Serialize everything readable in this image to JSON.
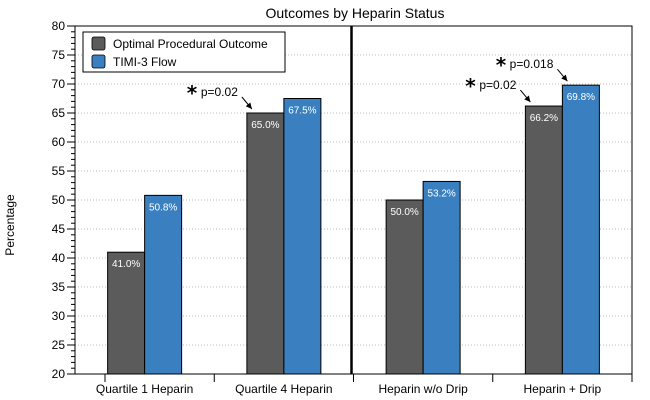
{
  "chart_data": {
    "type": "bar",
    "title": "Outcomes by Heparin Status",
    "ylabel": "Percentage",
    "xlabel": "",
    "ylim": [
      20,
      80
    ],
    "yticks": [
      20,
      25,
      30,
      35,
      40,
      45,
      50,
      55,
      60,
      65,
      70,
      75,
      80
    ],
    "grid": "dotted horizontal",
    "legend_placement": "top-left",
    "categories": [
      "Quartile 1 Heparin",
      "Quartile 4 Heparin",
      "Heparin w/o Drip",
      "Heparin + Drip"
    ],
    "series": [
      {
        "name": "Optimal Procedural Outcome",
        "color": "#5b5b5b",
        "values": [
          41.0,
          65.0,
          50.0,
          66.2
        ],
        "labels": [
          "41.0%",
          "65.0%",
          "50.0%",
          "66.2%"
        ]
      },
      {
        "name": "TIMI-3 Flow",
        "color": "#3a80c0",
        "values": [
          50.8,
          67.5,
          53.2,
          69.8
        ],
        "labels": [
          "50.8%",
          "67.5%",
          "53.2%",
          "69.8%"
        ]
      }
    ],
    "annotations": [
      {
        "text": "p=0.02",
        "star": "*",
        "category": 1,
        "series": 0
      },
      {
        "text": "p=0.02",
        "star": "*",
        "category": 3,
        "series": 0
      },
      {
        "text": "p=0.018",
        "star": "*",
        "category": 3,
        "series": 1
      }
    ],
    "separator_between": [
      1,
      2
    ]
  }
}
